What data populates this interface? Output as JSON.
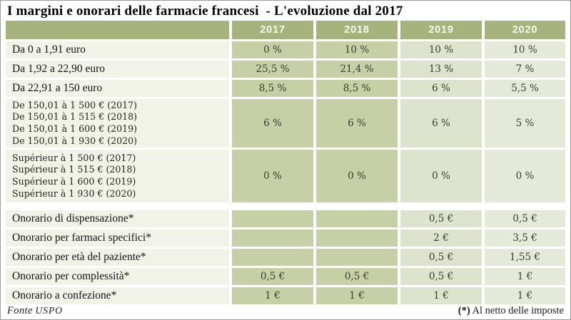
{
  "title": "I margini e onorari delle farmacie francesi  - L'evoluzione dal 2017",
  "colors": {
    "header_green": "#a6b37d",
    "col_2017_bg": "#c6cfa6",
    "col_2018_bg": "#c6cfa6",
    "col_2019_bg": "#dde3cc",
    "col_2020_bg": "#e5e9d8",
    "label_bg": "#f1f2e8",
    "header_text": "#f7f7ef",
    "value_text": "#3a3e2e"
  },
  "chart_data": {
    "type": "table",
    "title": "I margini e onorari delle farmacie francesi - L'evoluzione dal 2017",
    "year_headers": [
      "2017",
      "2018",
      "2019",
      "2020"
    ],
    "margin_rows": [
      {
        "label": "Da 0 a 1,91 euro",
        "values": [
          "0 %",
          "10 %",
          "10 %",
          "10 %"
        ]
      },
      {
        "label": "Da 1,92 a 22,90 euro",
        "values": [
          "25,5 %",
          "21,4 %",
          "13 %",
          "7 %"
        ]
      },
      {
        "label": "Da 22,91 a 150 euro",
        "values": [
          "8,5 %",
          "8,5 %",
          "6 %",
          "5,5 %"
        ]
      },
      {
        "label": "De 150,01 à 1 500 € (2017)\nDe 150,01 à 1 515 € (2018)\nDe 150,01 à 1 600 € (2019)\nDe 150,01 à 1 930 € (2020)",
        "values": [
          "6 %",
          "6 %",
          "6 %",
          "5 %"
        ]
      },
      {
        "label": "Supérieur à 1 500 € (2017)\nSupérieur à 1 515 € (2018)\nSupérieur à 1 600 € (2019)\nSupérieur à 1 930 € (2020)",
        "values": [
          "0 %",
          "0 %",
          "0 %",
          "0 %"
        ]
      }
    ],
    "fee_rows": [
      {
        "label": "Onorario di dispensazione*",
        "values": [
          "",
          "",
          "0,5 €",
          "0,5 €"
        ]
      },
      {
        "label": "Onorario per farmaci specifici*",
        "values": [
          "",
          "",
          "2 €",
          "3,5 €"
        ]
      },
      {
        "label": "Onorario per età del paziente*",
        "values": [
          "",
          "",
          "0,5 €",
          "1,55 €"
        ]
      },
      {
        "label": "Onorario per complessità*",
        "values": [
          "0,5 €",
          "0,5 €",
          "0,5 €",
          "1 €"
        ]
      },
      {
        "label": "Onorario a confezione*",
        "values": [
          "1 €",
          "1 €",
          "1 €",
          "1 €"
        ]
      }
    ]
  },
  "footer": {
    "source_label": "Fonte",
    "source_name": "USPO",
    "footnote_marker": "(*)",
    "footnote_text": " Al netto delle imposte"
  }
}
